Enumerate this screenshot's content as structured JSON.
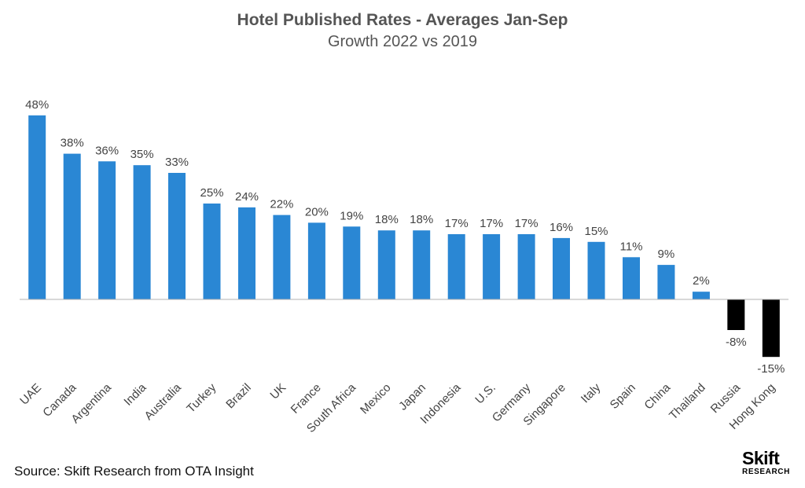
{
  "chart_data": {
    "type": "bar",
    "title": "Hotel Published Rates - Averages Jan-Sep",
    "subtitle": "Growth 2022 vs 2019",
    "categories": [
      "UAE",
      "Canada",
      "Argentina",
      "India",
      "Australia",
      "Turkey",
      "Brazil",
      "UK",
      "France",
      "South Africa",
      "Mexico",
      "Japan",
      "Indonesia",
      "U.S.",
      "Germany",
      "Singapore",
      "Italy",
      "Spain",
      "China",
      "Thailand",
      "Russia",
      "Hong Kong"
    ],
    "values": [
      48,
      38,
      36,
      35,
      33,
      25,
      24,
      22,
      20,
      19,
      18,
      18,
      17,
      17,
      17,
      16,
      15,
      11,
      9,
      2,
      -8,
      -15
    ],
    "data_labels": [
      "48%",
      "38%",
      "36%",
      "35%",
      "33%",
      "25%",
      "24%",
      "22%",
      "20%",
      "19%",
      "18%",
      "18%",
      "17%",
      "17%",
      "17%",
      "16%",
      "15%",
      "11%",
      "9%",
      "2%",
      "-8%",
      "-15%"
    ],
    "unit": "%",
    "colors": {
      "positive": "#2a87d4",
      "negative": "#000000",
      "baseline": "#b0b0b0"
    },
    "grid": false,
    "legend": "none"
  },
  "source": "Source: Skift Research from OTA Insight",
  "logo": {
    "main": "Skift",
    "sub": "RESEARCH"
  }
}
